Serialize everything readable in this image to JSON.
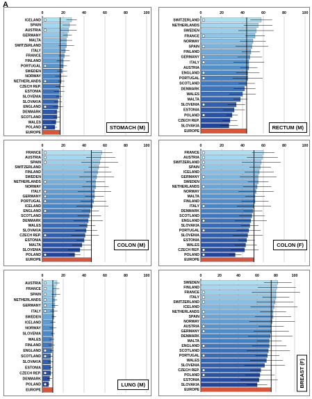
{
  "figure_label": "A",
  "colors": {
    "bar_dark": "#23469b",
    "bar_mid": "#4a88c6",
    "bar_light": "#aee0f2",
    "europe": "#d5563a",
    "background": "#ffffff"
  },
  "chart_data": [
    {
      "id": "stomach",
      "type": "bar",
      "orientation": "horizontal",
      "title": "STOMACH (M)",
      "xlim": [
        0,
        100
      ],
      "x_ticks": [
        "0",
        "20",
        "40",
        "60",
        "80",
        "100"
      ],
      "grid": true,
      "categories": [
        "ICELAND",
        "SPAIN",
        "AUSTRIA",
        "GERMANY",
        "MALTA",
        "SWITZERLAND",
        "ITALY",
        "FRANCE",
        "FINLAND",
        "PORTUGAL",
        "SWEDEN",
        "NORWAY",
        "NETHERLANDS",
        "CZECH REP.",
        "ESTONIA",
        "SLOVENIA",
        "SLOVAKIA",
        "ENGLAND",
        "DENMARK",
        "SCOTLAND",
        "WALES",
        "POLAND",
        "EUROPE"
      ],
      "values": [
        28,
        26,
        25,
        24,
        23,
        23,
        22,
        21,
        20,
        20,
        19,
        18,
        18,
        17,
        16,
        16,
        15,
        15,
        14,
        14,
        13,
        12,
        17
      ],
      "marked": [
        "ICELAND",
        "AUSTRIA",
        "PORTUGAL",
        "NETHERLANDS",
        "ENGLAND",
        "POLAND"
      ]
    },
    {
      "id": "rectum",
      "type": "bar",
      "orientation": "horizontal",
      "title": "RECTUM (M)",
      "xlim": [
        0,
        100
      ],
      "x_ticks": [
        "0",
        "20",
        "40",
        "60",
        "80",
        "100"
      ],
      "grid": true,
      "categories": [
        "SWITZERLAND",
        "NETHERLANDS",
        "SWEDEN",
        "FRANCE",
        "NORWAY",
        "SPAIN",
        "FINLAND",
        "GERMANY",
        "ITALY",
        "AUSTRIA",
        "ENGLAND",
        "PORTUGAL",
        "SCOTLAND",
        "DENMARK",
        "WALES",
        "MALTA",
        "SLOVENIA",
        "ESTONIA",
        "POLAND",
        "CZECH REP.",
        "SLOVAKIA",
        "EUROPE"
      ],
      "values": [
        58,
        55,
        53,
        52,
        50,
        49,
        48,
        47,
        46,
        46,
        45,
        45,
        44,
        42,
        40,
        38,
        34,
        32,
        30,
        28,
        27,
        44
      ],
      "marked": [
        "SWITZERLAND",
        "FRANCE",
        "SPAIN",
        "GERMANY",
        "ITALY",
        "ENGLAND",
        "PORTUGAL",
        "SLOVENIA",
        "POLAND"
      ]
    },
    {
      "id": "colon_m",
      "type": "bar",
      "orientation": "horizontal",
      "title": "COLON (M)",
      "xlim": [
        0,
        100
      ],
      "x_ticks": [
        "0",
        "20",
        "40",
        "60",
        "80",
        "100"
      ],
      "grid": true,
      "categories": [
        "FRANCE",
        "AUSTRIA",
        "SPAIN",
        "SWITZERLAND",
        "FINLAND",
        "SWEDEN",
        "NETHERLANDS",
        "NORWAY",
        "ITALY",
        "GERMANY",
        "PORTUGAL",
        "ICELAND",
        "ENGLAND",
        "SCOTLAND",
        "DENMARK",
        "WALES",
        "SLOVAKIA",
        "CZECH REP.",
        "ESTONIA",
        "MALTA",
        "SLOVENIA",
        "POLAND",
        "EUROPE"
      ],
      "values": [
        57,
        56,
        55,
        54,
        53,
        52,
        51,
        51,
        50,
        50,
        49,
        48,
        46,
        45,
        44,
        43,
        42,
        41,
        40,
        38,
        36,
        31,
        47
      ],
      "marked": [
        "FRANCE",
        "AUSTRIA",
        "SPAIN",
        "NETHERLANDS",
        "ITALY",
        "GERMANY",
        "PORTUGAL",
        "ENGLAND",
        "CZECH REP.",
        "POLAND"
      ]
    },
    {
      "id": "colon_f",
      "type": "bar",
      "orientation": "horizontal",
      "title": "COLON (F)",
      "xlim": [
        0,
        100
      ],
      "x_ticks": [
        "0",
        "20",
        "40",
        "60",
        "80",
        "100"
      ],
      "grid": true,
      "categories": [
        "FRANCE",
        "AUSTRIA",
        "SWITZERLAND",
        "SPAIN",
        "ICELAND",
        "GERMANY",
        "SWEDEN",
        "NETHERLANDS",
        "NORWAY",
        "MALTA",
        "FINLAND",
        "ITALY",
        "DENMARK",
        "SCOTLAND",
        "ENGLAND",
        "SLOVAKIA",
        "PORTUGAL",
        "SLOVENIA",
        "ESTONIA",
        "WALES",
        "CZECH REP.",
        "POLAND",
        "EUROPE"
      ],
      "values": [
        60,
        59,
        58,
        57,
        56,
        55,
        55,
        54,
        53,
        52,
        52,
        51,
        50,
        49,
        48,
        47,
        46,
        45,
        44,
        43,
        42,
        33,
        51
      ],
      "marked": [
        "FRANCE",
        "AUSTRIA",
        "SWITZERLAND",
        "SPAIN",
        "GERMANY",
        "NETHERLANDS",
        "ITALY",
        "ENGLAND",
        "PORTUGAL",
        "CZECH REP.",
        "POLAND"
      ]
    },
    {
      "id": "lung",
      "type": "bar",
      "orientation": "horizontal",
      "title": "LUNG (M)",
      "xlim": [
        0,
        100
      ],
      "x_ticks": [
        "0",
        "20",
        "40",
        "60",
        "80",
        "100"
      ],
      "grid": true,
      "categories": [
        "AUSTRIA",
        "FRANCE",
        "SPAIN",
        "NETHERLANDS",
        "GERMANY",
        "ITALY",
        "SWEDEN",
        "ICELAND",
        "NORWAY",
        "SLOVENIA",
        "WALES",
        "FINLAND",
        "ENGLAND",
        "SCOTLAND",
        "SLOVAKIA",
        "ESTONIA",
        "CZECH REP.",
        "DENMARK",
        "POLAND",
        "EUROPE"
      ],
      "values": [
        14,
        13,
        13,
        12,
        12,
        11,
        11,
        10,
        10,
        10,
        9,
        9,
        9,
        8,
        8,
        8,
        8,
        7,
        6,
        10
      ],
      "marked": [
        "AUSTRIA",
        "FRANCE",
        "SPAIN",
        "NETHERLANDS",
        "GERMANY",
        "ITALY",
        "ENGLAND",
        "SCOTLAND",
        "CZECH REP.",
        "POLAND"
      ]
    },
    {
      "id": "breast",
      "type": "bar",
      "orientation": "horizontal",
      "title": "BREAST (F)",
      "xlim": [
        0,
        100
      ],
      "x_ticks": [
        "0",
        "20",
        "40",
        "60",
        "80",
        "100"
      ],
      "grid": true,
      "categories": [
        "SWEDEN",
        "FINLAND",
        "FRANCE",
        "ITALY",
        "SWITZERLAND",
        "ICELAND",
        "NETHERLANDS",
        "SPAIN",
        "NORWAY",
        "AUSTRIA",
        "GERMANY",
        "DENMARK",
        "MALTA",
        "ENGLAND",
        "SCOTLAND",
        "PORTUGAL",
        "WALES",
        "SLOVENIA",
        "CZECH REP.",
        "POLAND",
        "ESTONIA",
        "SLOVAKIA",
        "EUROPE"
      ],
      "values": [
        82,
        81,
        80,
        80,
        79,
        78,
        77,
        77,
        76,
        75,
        75,
        74,
        73,
        73,
        72,
        71,
        70,
        68,
        64,
        63,
        62,
        60,
        75
      ],
      "marked": [
        "FRANCE",
        "ITALY",
        "SWITZERLAND",
        "NETHERLANDS",
        "SPAIN",
        "AUSTRIA",
        "GERMANY",
        "ENGLAND",
        "PORTUGAL",
        "CZECH REP.",
        "POLAND"
      ]
    }
  ]
}
